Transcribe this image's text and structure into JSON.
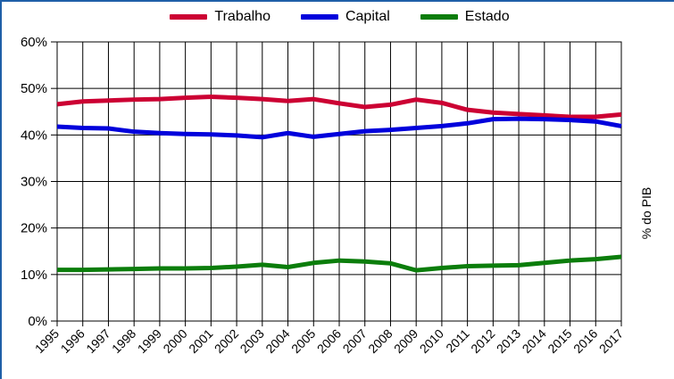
{
  "frame": {
    "background": "#ffffff",
    "border_color": "#1F5FA8"
  },
  "legend": {
    "items": [
      {
        "label": "Trabalho",
        "color": "#CC0033"
      },
      {
        "label": "Capital",
        "color": "#0000DC"
      },
      {
        "label": "Estado",
        "color": "#0B7D0B"
      }
    ]
  },
  "chart_data": {
    "type": "line",
    "title": "",
    "xlabel": "",
    "ylabel_right": "% do PIB",
    "ylim": [
      0,
      60
    ],
    "y_tick_labels": [
      "0%",
      "10%",
      "20%",
      "30%",
      "40%",
      "50%",
      "60%"
    ],
    "grid": true,
    "legend_position": "top-center",
    "x": [
      1995,
      1996,
      1997,
      1998,
      1999,
      2000,
      2001,
      2002,
      2003,
      2004,
      2005,
      2006,
      2007,
      2008,
      2009,
      2010,
      2011,
      2012,
      2013,
      2014,
      2015,
      2016,
      2017
    ],
    "series": [
      {
        "name": "Trabalho",
        "color": "#CC0033",
        "values": [
          46.6,
          47.2,
          47.4,
          47.6,
          47.7,
          48.0,
          48.2,
          48.0,
          47.7,
          47.3,
          47.7,
          46.8,
          46.0,
          46.5,
          47.6,
          46.9,
          45.4,
          44.8,
          44.5,
          44.2,
          43.9,
          43.9,
          44.4
        ]
      },
      {
        "name": "Capital",
        "color": "#0000DC",
        "values": [
          41.8,
          41.5,
          41.4,
          40.7,
          40.4,
          40.2,
          40.1,
          39.9,
          39.5,
          40.4,
          39.6,
          40.2,
          40.8,
          41.1,
          41.5,
          41.9,
          42.5,
          43.4,
          43.5,
          43.4,
          43.2,
          42.9,
          41.9
        ]
      },
      {
        "name": "Estado",
        "color": "#0B7D0B",
        "values": [
          11.0,
          11.0,
          11.1,
          11.2,
          11.3,
          11.3,
          11.4,
          11.7,
          12.1,
          11.6,
          12.5,
          13.0,
          12.8,
          12.4,
          10.9,
          11.4,
          11.8,
          11.9,
          12.0,
          12.5,
          13.0,
          13.3,
          13.8
        ]
      }
    ]
  }
}
